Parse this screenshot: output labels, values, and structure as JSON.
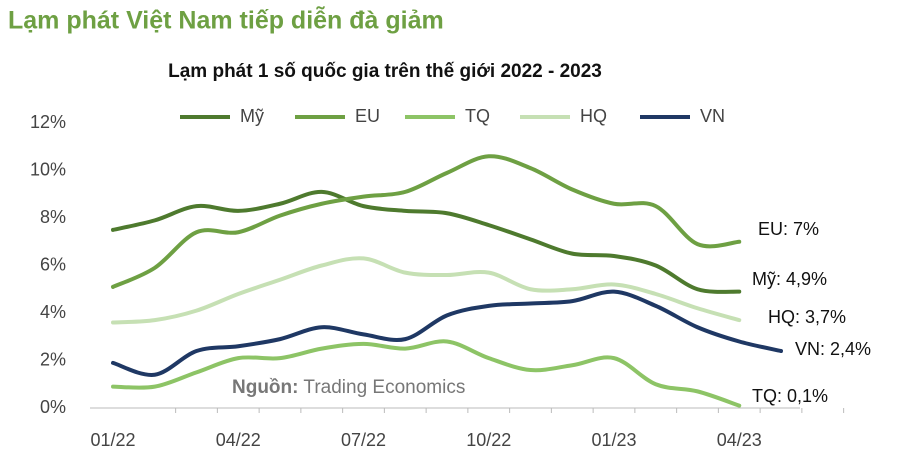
{
  "page_title": "Lạm phát Việt Nam tiếp diễn đà giảm",
  "chart_data": {
    "type": "line",
    "title": "Lạm phát 1 số quốc gia trên thế giới 2022 - 2023",
    "categories": [
      "01/22",
      null,
      null,
      "04/22",
      null,
      null,
      "07/22",
      null,
      null,
      "10/22",
      null,
      null,
      "01/23",
      null,
      null,
      "04/23",
      null
    ],
    "series": [
      {
        "name": "Mỹ",
        "color": "#4e7a2e",
        "values": [
          7.5,
          7.9,
          8.5,
          8.3,
          8.6,
          9.1,
          8.5,
          8.3,
          8.2,
          7.7,
          7.1,
          6.5,
          6.4,
          6.0,
          5.0,
          4.9,
          null
        ],
        "end_label": "Mỹ: 4,9%"
      },
      {
        "name": "EU",
        "color": "#6ea043",
        "values": [
          5.1,
          5.9,
          7.4,
          7.4,
          8.1,
          8.6,
          8.9,
          9.1,
          9.9,
          10.6,
          10.1,
          9.2,
          8.6,
          8.5,
          6.9,
          7.0,
          null
        ],
        "end_label": "EU: 7%"
      },
      {
        "name": "TQ",
        "color": "#8dc466",
        "values": [
          0.9,
          0.9,
          1.5,
          2.1,
          2.1,
          2.5,
          2.7,
          2.5,
          2.8,
          2.1,
          1.6,
          1.8,
          2.1,
          1.0,
          0.7,
          0.1,
          null
        ],
        "end_label": "TQ: 0,1%"
      },
      {
        "name": "HQ",
        "color": "#c6e0b4",
        "values": [
          3.6,
          3.7,
          4.1,
          4.8,
          5.4,
          6.0,
          6.3,
          5.7,
          5.6,
          5.7,
          5.0,
          5.0,
          5.2,
          4.8,
          4.2,
          3.7,
          null
        ],
        "end_label": "HQ: 3,7%"
      },
      {
        "name": "VN",
        "color": "#1f3864",
        "values": [
          1.9,
          1.4,
          2.4,
          2.6,
          2.9,
          3.4,
          3.1,
          2.9,
          3.9,
          4.3,
          4.4,
          4.5,
          4.9,
          4.3,
          3.4,
          2.8,
          2.4
        ],
        "end_label": "VN: 2,4%"
      }
    ],
    "ylim": [
      0,
      12
    ],
    "yticks": [
      {
        "value": 0,
        "label": "0%"
      },
      {
        "value": 2,
        "label": "2%"
      },
      {
        "value": 4,
        "label": "4%"
      },
      {
        "value": 6,
        "label": "6%"
      },
      {
        "value": 8,
        "label": "8%"
      },
      {
        "value": 10,
        "label": "10%"
      },
      {
        "value": 12,
        "label": "12%"
      }
    ],
    "grid": false,
    "legend": "top",
    "source": {
      "label": "Nguồn:",
      "text": "Trading Economics"
    }
  }
}
